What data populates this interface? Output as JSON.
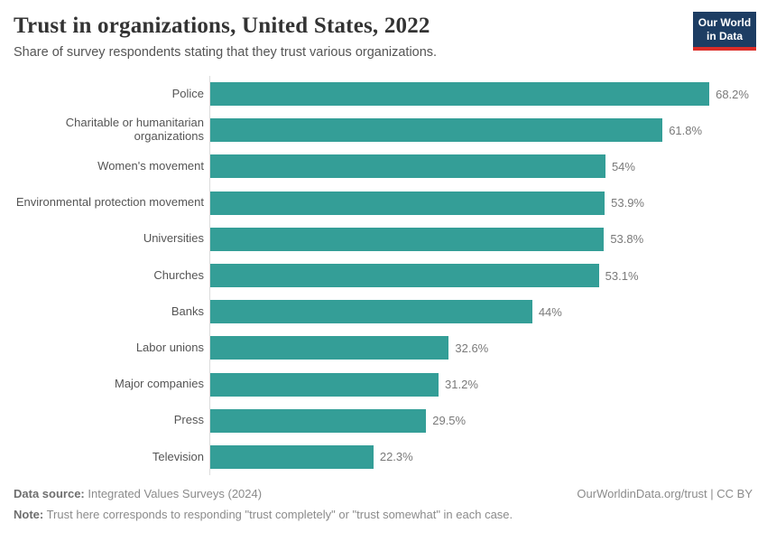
{
  "header": {
    "title": "Trust in organizations, United States, 2022",
    "subtitle": "Share of survey respondents stating that they trust various organizations."
  },
  "logo": {
    "line1": "Our World",
    "line2": "in Data"
  },
  "chart_data": {
    "type": "bar",
    "orientation": "horizontal",
    "title": "Trust in organizations, United States, 2022",
    "categories": [
      "Police",
      "Charitable or humanitarian organizations",
      "Women's movement",
      "Environmental protection movement",
      "Universities",
      "Churches",
      "Banks",
      "Labor unions",
      "Major companies",
      "Press",
      "Television"
    ],
    "values": [
      68.2,
      61.8,
      54,
      53.9,
      53.8,
      53.1,
      44,
      32.6,
      31.2,
      29.5,
      22.3
    ],
    "value_labels": [
      "68.2%",
      "61.8%",
      "54%",
      "53.9%",
      "53.8%",
      "53.1%",
      "44%",
      "32.6%",
      "31.2%",
      "29.5%",
      "22.3%"
    ],
    "xlabel": "",
    "ylabel": "",
    "xlim": [
      0,
      70
    ],
    "grid": false,
    "legend": false,
    "bar_color": "#349e97",
    "axis_line_color": "#dcdcdc"
  },
  "footer": {
    "datasource_label": "Data source:",
    "datasource_value": " Integrated Values Surveys (2024)",
    "note_label": "Note:",
    "note_value": " Trust here corresponds to responding \"trust completely\" or \"trust somewhat\" in each case.",
    "credit": "OurWorldinData.org/trust | CC BY"
  }
}
